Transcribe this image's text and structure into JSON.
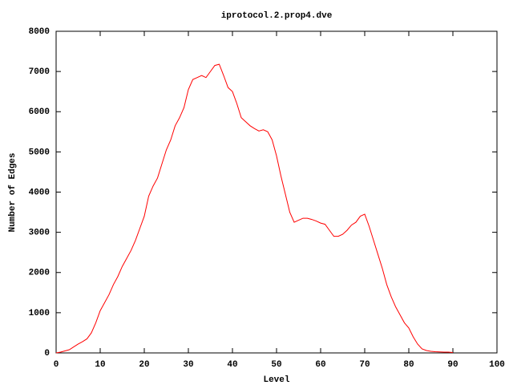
{
  "chart_data": {
    "type": "line",
    "title": "iprotocol.2.prop4.dve",
    "x_label": "Level",
    "y_label": "Number of Edges",
    "x": [
      0,
      1,
      2,
      3,
      4,
      5,
      6,
      7,
      8,
      9,
      10,
      11,
      12,
      13,
      14,
      15,
      16,
      17,
      18,
      19,
      20,
      21,
      22,
      23,
      24,
      25,
      26,
      27,
      28,
      29,
      30,
      31,
      32,
      33,
      34,
      35,
      36,
      37,
      38,
      39,
      40,
      41,
      42,
      43,
      44,
      45,
      46,
      47,
      48,
      49,
      50,
      51,
      52,
      53,
      54,
      55,
      56,
      57,
      58,
      59,
      60,
      61,
      62,
      63,
      64,
      65,
      66,
      67,
      68,
      69,
      70,
      71,
      72,
      73,
      74,
      75,
      76,
      77,
      78,
      79,
      80,
      81,
      82,
      83,
      84,
      85,
      86,
      87,
      88,
      89,
      90
    ],
    "series": [
      {
        "color": "#ff0000",
        "values": [
          0,
          20,
          50,
          80,
          150,
          220,
          280,
          350,
          500,
          750,
          1050,
          1250,
          1450,
          1700,
          1900,
          2150,
          2350,
          2550,
          2800,
          3100,
          3400,
          3900,
          4150,
          4350,
          4700,
          5050,
          5300,
          5650,
          5850,
          6100,
          6550,
          6800,
          6850,
          6900,
          6850,
          7000,
          7150,
          7180,
          6900,
          6600,
          6500,
          6200,
          5850,
          5750,
          5650,
          5580,
          5520,
          5550,
          5500,
          5300,
          4900,
          4400,
          3950,
          3500,
          3250,
          3300,
          3350,
          3350,
          3320,
          3280,
          3230,
          3200,
          3050,
          2900,
          2900,
          2950,
          3050,
          3180,
          3250,
          3400,
          3450,
          3150,
          2800,
          2450,
          2100,
          1700,
          1400,
          1150,
          950,
          750,
          620,
          400,
          220,
          100,
          60,
          40,
          30,
          25,
          20,
          20,
          10
        ]
      }
    ],
    "xlim": [
      0,
      100
    ],
    "xticks": [
      0,
      10,
      20,
      30,
      40,
      50,
      60,
      70,
      80,
      90,
      100
    ],
    "ylim": [
      0,
      8000
    ],
    "yticks": [
      0,
      1000,
      2000,
      3000,
      4000,
      5000,
      6000,
      7000,
      8000
    ],
    "grid": false
  }
}
